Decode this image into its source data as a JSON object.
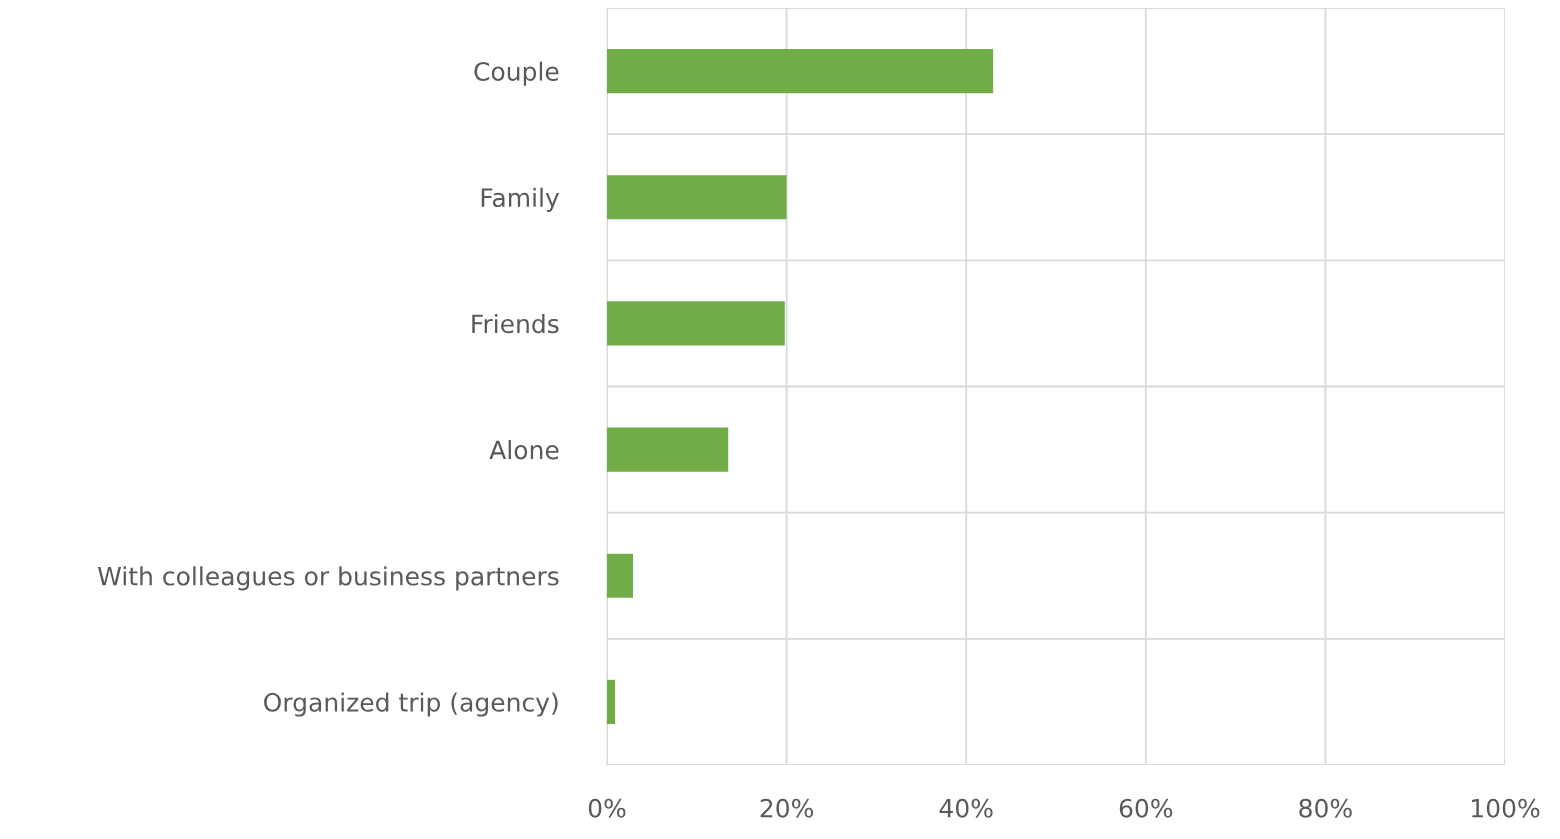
{
  "chart_data": {
    "type": "bar",
    "orientation": "horizontal",
    "categories": [
      "Couple",
      "Family",
      "Friends",
      "Alone",
      "With colleagues or business partners",
      "Organized trip (agency)"
    ],
    "values": [
      43,
      20,
      19.8,
      13.5,
      2.9,
      0.9
    ],
    "color": "#70ad47",
    "xlim": [
      0,
      100
    ],
    "xticks": [
      {
        "value": 0,
        "label": "0%"
      },
      {
        "value": 20,
        "label": "20%"
      },
      {
        "value": 40,
        "label": "40%"
      },
      {
        "value": 60,
        "label": "60%"
      },
      {
        "value": 80,
        "label": "80%"
      },
      {
        "value": 100,
        "label": "100%"
      }
    ],
    "grid": true,
    "legend": false
  }
}
